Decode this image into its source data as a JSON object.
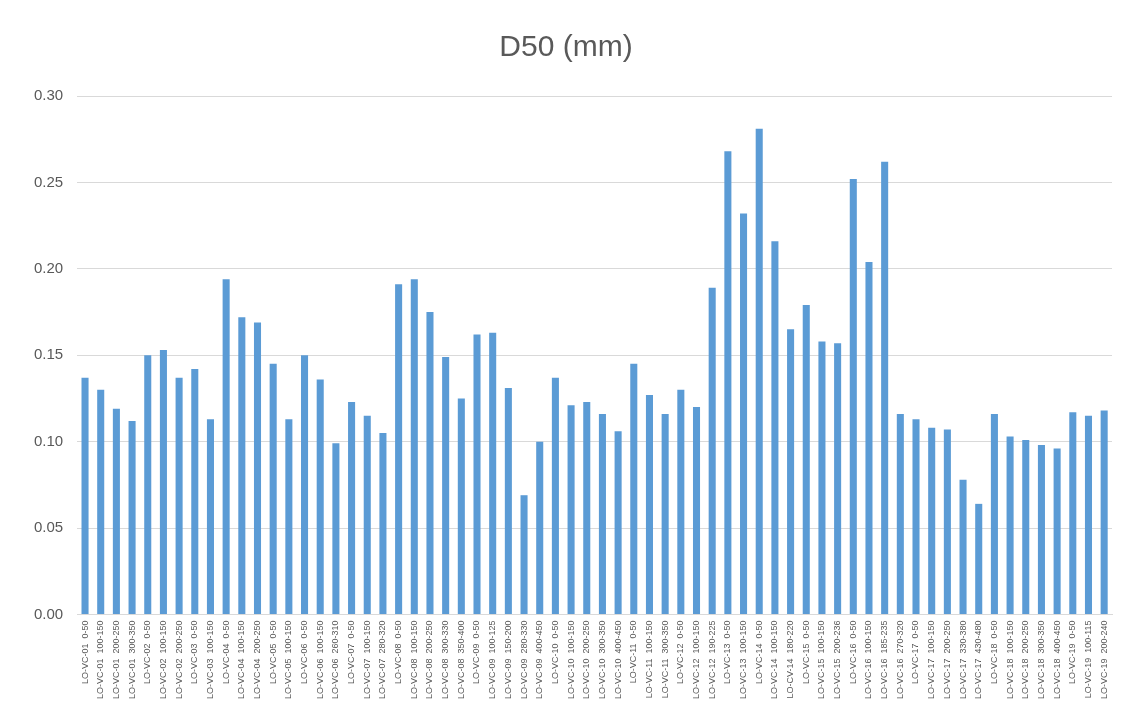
{
  "chart_data": {
    "type": "bar",
    "title": "D50 (mm)",
    "categories": [
      "LO-VC-01  0-50",
      "LO-VC-01  100-150",
      "LO-VC-01  200-250",
      "LO-VC-01  300-350",
      "LO-VC-02  0-50",
      "LO-VC-02  100-150",
      "LO-VC-02  200-250",
      "LO-VC-03  0-50",
      "LO-VC-03  100-150",
      "LO-VC-04  0-50",
      "LO-VC-04  100-150",
      "LO-VC-04  200-250",
      "LO-VC-05  0-50",
      "LO-VC-05  100-150",
      "LO-VC-06  0-50",
      "LO-VC-06  100-150",
      "LO-VC-06  260-310",
      "LO-VC-07  0-50",
      "LO-VC-07  100-150",
      "LO-VC-07  280-320",
      "LO-VC-08  0-50",
      "LO-VC-08  100-150",
      "LO-VC-08  200-250",
      "LO-VC-08  300-330",
      "LO-VC-08  350-400",
      "LO-VC-09  0-50",
      "LO-VC-09  100-125",
      "LO-VC-09  150-200",
      "LO-VC-09  280-330",
      "LO-VC-09  400-450",
      "LO-VC-10  0-50",
      "LO-VC-10  100-150",
      "LO-VC-10  200-250",
      "LO-VC-10  300-350",
      "LO-VC-10  400-450",
      "LO-VC-11  0-50",
      "LO-VC-11  100-150",
      "LO-VC-11  300-350",
      "LO-VC-12  0-50",
      "LO-VC-12  100-150",
      "LO-VC-12  190-225",
      "LO-VC-13  0-50",
      "LO-VC-13  100-150",
      "LO-VC-14  0-50",
      "LO-VC-14  100-150",
      "LO-CV-14  180-220",
      "LO-VC-15  0-50",
      "LO-VC-15  100-150",
      "LO-VC-15  200-236",
      "LO-VC-16  0-50",
      "LO-VC-16  100-150",
      "LO-VC-16  185-235",
      "LO-VC-16  270-320",
      "LO-VC-17  0-50",
      "LO-VC-17  100-150",
      "LO-VC-17  200-250",
      "LO-VC-17  330-380",
      "LO-VC-17  430-480",
      "LO-VC-18  0-50",
      "LO-VC-18  100-150",
      "LO-VC-18  200-250",
      "LO-VC-18  300-350",
      "LO-VC-18  400-450",
      "LO-VC-19  0-50",
      "LO-VC-19  100-115",
      "LO-VC-19  200-240"
    ],
    "values": [
      0.137,
      0.13,
      0.119,
      0.112,
      0.15,
      0.153,
      0.137,
      0.142,
      0.113,
      0.194,
      0.172,
      0.169,
      0.145,
      0.113,
      0.15,
      0.136,
      0.099,
      0.123,
      0.115,
      0.105,
      0.191,
      0.194,
      0.175,
      0.149,
      0.125,
      0.162,
      0.163,
      0.131,
      0.069,
      0.1,
      0.137,
      0.121,
      0.123,
      0.116,
      0.106,
      0.145,
      0.127,
      0.116,
      0.13,
      0.12,
      0.189,
      0.268,
      0.232,
      0.281,
      0.216,
      0.165,
      0.179,
      0.158,
      0.157,
      0.252,
      0.204,
      0.262,
      0.116,
      0.113,
      0.108,
      0.107,
      0.078,
      0.064,
      0.116,
      0.103,
      0.101,
      0.098,
      0.096,
      0.117,
      0.115,
      0.118
    ],
    "color": "#5b9bd5",
    "ylim": [
      0,
      0.3
    ],
    "yticks": [
      {
        "value": 0,
        "label": "0.00"
      },
      {
        "value": 0.05,
        "label": "0.05"
      },
      {
        "value": 0.1,
        "label": "0.10"
      },
      {
        "value": 0.15,
        "label": "0.15"
      },
      {
        "value": 0.2,
        "label": "0.20"
      },
      {
        "value": 0.25,
        "label": "0.25"
      },
      {
        "value": 0.3,
        "label": "0.30"
      }
    ],
    "grid": "y",
    "legend": false
  }
}
